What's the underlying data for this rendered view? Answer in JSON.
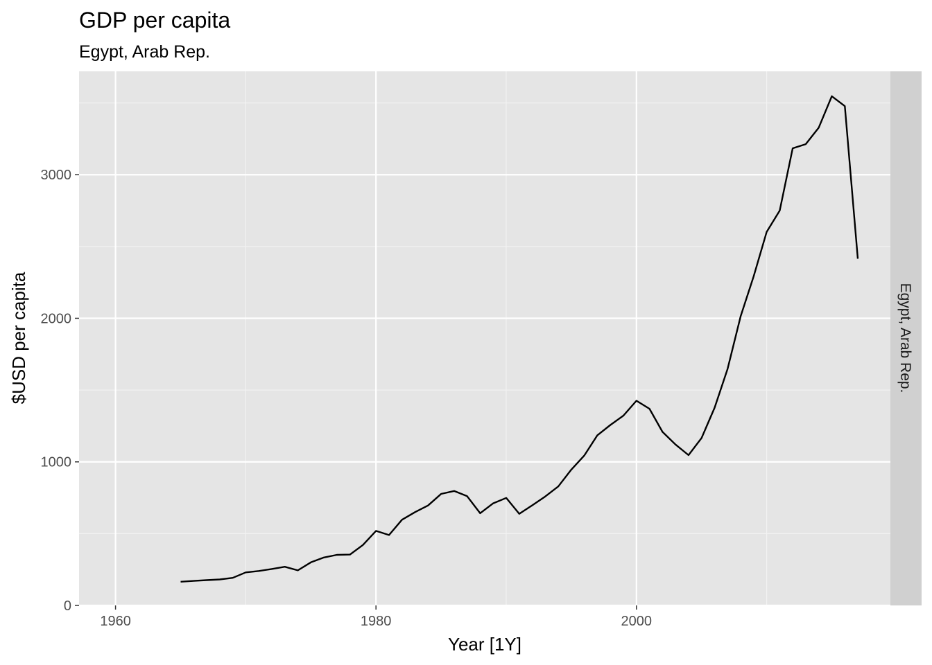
{
  "chart_data": {
    "type": "line",
    "title": "GDP per capita",
    "subtitle": "Egypt, Arab Rep.",
    "xlabel": "Year [1Y]",
    "ylabel": "$USD per capita",
    "facet_label": "Egypt, Arab Rep.",
    "xlim": [
      1957.2,
      1919.5
    ],
    "ylim": [
      0,
      3720
    ],
    "x_ticks": [
      1960,
      1980,
      2000
    ],
    "x_tick_labels": [
      "1960",
      "1980",
      "2000"
    ],
    "y_ticks": [
      0,
      1000,
      2000,
      3000
    ],
    "y_tick_labels": [
      "0",
      "1000",
      "2000",
      "3000"
    ],
    "grid": true,
    "line_color": "#000000",
    "panel_color": "#e5e5e5",
    "strip_color": "#d0d0d0",
    "series": [
      {
        "x": [
          1965,
          1966,
          1967,
          1968,
          1969,
          1970,
          1971,
          1972,
          1973,
          1974,
          1975,
          1976,
          1977,
          1978,
          1979,
          1980,
          1981,
          1982,
          1983,
          1984,
          1985,
          1986,
          1987,
          1988,
          1989,
          1990,
          1991,
          1992,
          1993,
          1994,
          1995,
          1996,
          1997,
          1998,
          1999,
          2000,
          2001,
          2002,
          2003,
          2004,
          2005,
          2006,
          2007,
          2008,
          2009,
          2010,
          2011,
          2012,
          2013,
          2014,
          2015,
          2016,
          2017
        ],
        "y": [
          165,
          171,
          176,
          181,
          192,
          230,
          240,
          254,
          269,
          244,
          300,
          334,
          352,
          354,
          421,
          519,
          490,
          597,
          650,
          696,
          777,
          797,
          761,
          642,
          711,
          749,
          638,
          697,
          759,
          829,
          946,
          1045,
          1185,
          1257,
          1322,
          1426,
          1370,
          1209,
          1121,
          1047,
          1166,
          1377,
          1647,
          2013,
          2292,
          2602,
          2750,
          3184,
          3213,
          3328,
          3547,
          3478,
          2415
        ]
      }
    ]
  }
}
